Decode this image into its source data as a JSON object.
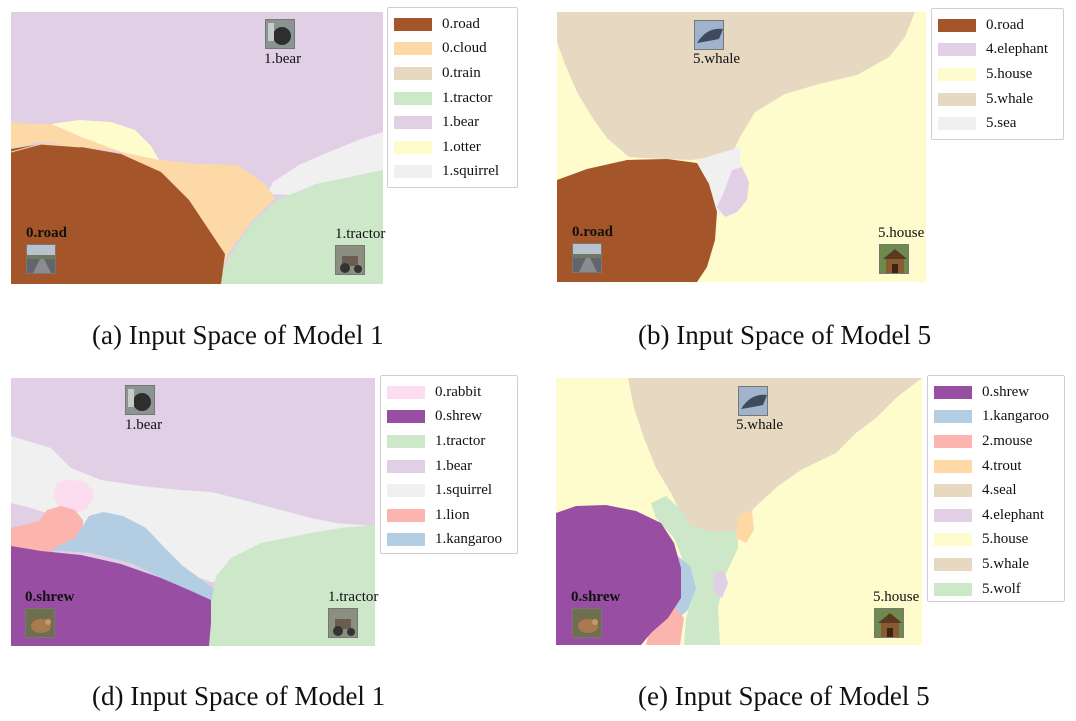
{
  "panels": {
    "a": {
      "caption": "(a) Input Space of Model 1",
      "legend": [
        {
          "label": "0.road",
          "color": "#a5552a"
        },
        {
          "label": "0.cloud",
          "color": "#fdd9a7"
        },
        {
          "label": "0.train",
          "color": "#e6d8c1"
        },
        {
          "label": "1.tractor",
          "color": "#cce8c9"
        },
        {
          "label": "1.bear",
          "color": "#e1cfe6"
        },
        {
          "label": "1.otter",
          "color": "#fefbcd"
        },
        {
          "label": "1.squirrel",
          "color": "#f0f0f0"
        }
      ],
      "points": {
        "top": "1.bear",
        "left": "0.road",
        "right": "1.tractor"
      }
    },
    "b": {
      "caption": "(b) Input Space of Model 5",
      "legend": [
        {
          "label": "0.road",
          "color": "#a5552a"
        },
        {
          "label": "4.elephant",
          "color": "#e1cfe6"
        },
        {
          "label": "5.house",
          "color": "#fefbcd"
        },
        {
          "label": "5.whale",
          "color": "#e6d8c1"
        },
        {
          "label": "5.sea",
          "color": "#f0f0f0"
        }
      ],
      "points": {
        "top": "5.whale",
        "left": "0.road",
        "right": "5.house"
      }
    },
    "d": {
      "caption": "(d) Input Space of Model 1",
      "legend": [
        {
          "label": "0.rabbit",
          "color": "#fcdcef"
        },
        {
          "label": "0.shrew",
          "color": "#984ea3"
        },
        {
          "label": "1.tractor",
          "color": "#cce8c9"
        },
        {
          "label": "1.bear",
          "color": "#e1cfe6"
        },
        {
          "label": "1.squirrel",
          "color": "#f0f0f0"
        },
        {
          "label": "1.lion",
          "color": "#fbb4ae"
        },
        {
          "label": "1.kangaroo",
          "color": "#b3cde3"
        }
      ],
      "points": {
        "top": "1.bear",
        "left": "0.shrew",
        "right": "1.tractor"
      }
    },
    "e": {
      "caption": "(e) Input Space of Model 5",
      "legend": [
        {
          "label": "0.shrew",
          "color": "#984ea3"
        },
        {
          "label": "1.kangaroo",
          "color": "#b3cde3"
        },
        {
          "label": "2.mouse",
          "color": "#fbb4ae"
        },
        {
          "label": "4.trout",
          "color": "#fed9a6"
        },
        {
          "label": "4.seal",
          "color": "#e6d8c1"
        },
        {
          "label": "4.elephant",
          "color": "#e1cfe6"
        },
        {
          "label": "5.house",
          "color": "#fefbcd"
        },
        {
          "label": "5.whale",
          "color": "#e6d8c1"
        },
        {
          "label": "5.wolf",
          "color": "#cce8c9"
        }
      ],
      "points": {
        "top": "5.whale",
        "left": "0.shrew",
        "right": "5.house"
      }
    }
  },
  "icons": {
    "bear": "bear-thumbnail-icon",
    "road": "road-thumbnail-icon",
    "tractor": "tractor-thumbnail-icon",
    "whale": "whale-thumbnail-icon",
    "house": "house-thumbnail-icon",
    "shrew": "shrew-thumbnail-icon"
  }
}
